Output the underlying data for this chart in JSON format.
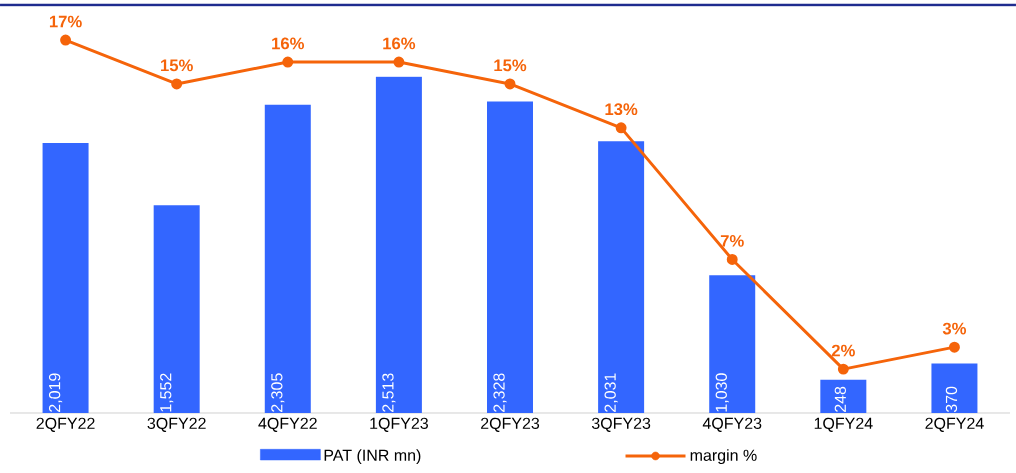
{
  "chart_data": {
    "type": "bar",
    "categories": [
      "2QFY22",
      "3QFY22",
      "4QFY22",
      "1QFY23",
      "2QFY23",
      "3QFY23",
      "4QFY23",
      "1QFY24",
      "2QFY24"
    ],
    "series": [
      {
        "name": "PAT (INR mn)",
        "color": "#3366ff",
        "values": [
          2019,
          1552,
          2305,
          2513,
          2328,
          2031,
          1030,
          248,
          370
        ],
        "value_labels": [
          "2,019",
          "1,552",
          "2,305",
          "2,513",
          "2,328",
          "2,031",
          "1,030",
          "248",
          "370"
        ]
      },
      {
        "name": "margin %",
        "type": "line",
        "axis": "y2",
        "color": "#f5640a",
        "marker": "circle",
        "values": [
          17,
          15,
          16,
          16,
          15,
          13,
          7,
          2,
          3
        ],
        "value_labels": [
          "17%",
          "15%",
          "16%",
          "16%",
          "15%",
          "13%",
          "7%",
          "2%",
          "3%"
        ]
      }
    ],
    "ylim": [
      0,
      3050
    ],
    "y2lim": [
      0,
      18.6
    ],
    "tick_labels": "x",
    "legend": "bottom"
  }
}
